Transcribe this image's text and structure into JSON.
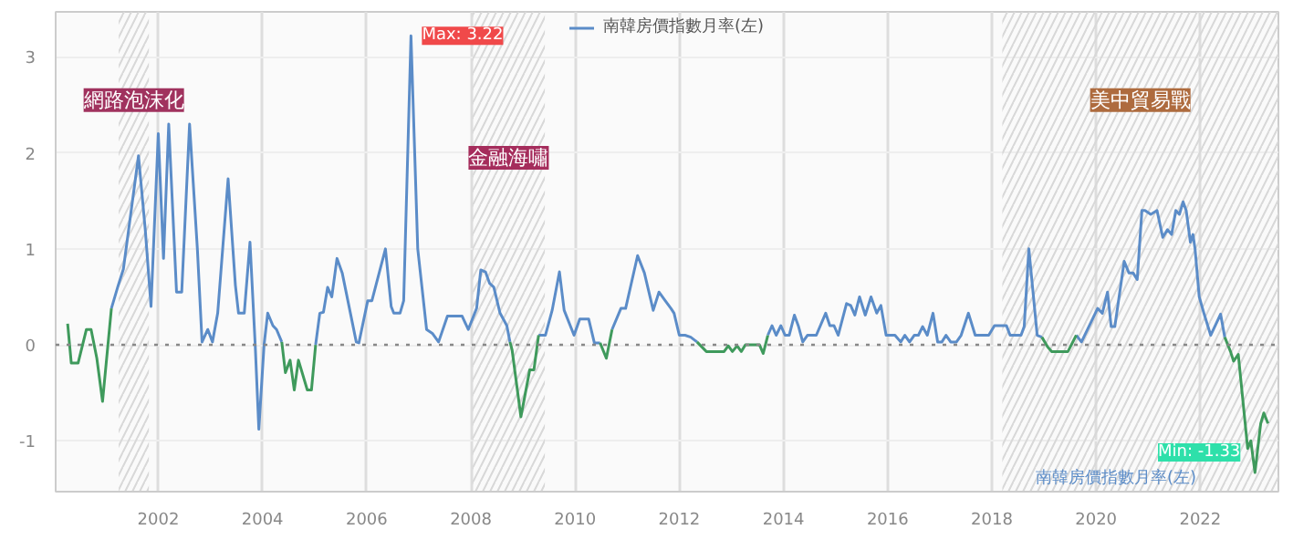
{
  "chart_data": {
    "type": "line",
    "legend": "top",
    "grid": true,
    "line_style": "solid",
    "marker": "none",
    "xlim": [
      2000.03,
      2023.5
    ],
    "xticks": [
      2002,
      2004,
      2006,
      2008,
      2010,
      2012,
      2014,
      2016,
      2018,
      2020,
      2022
    ],
    "ylim": [
      -1.53,
      3.47
    ],
    "yticks": [
      -1,
      0,
      1,
      2,
      3
    ],
    "series": [
      {
        "name": "南韓房價指數月率(左)",
        "color": "#5b8cc8",
        "x": [
          2001.1,
          2001.22,
          2001.33,
          2001.62,
          2001.75,
          2001.86,
          2002.0,
          2002.1,
          2002.2,
          2002.35,
          2002.45,
          2002.6,
          2002.75,
          2002.84,
          2002.95,
          2003.04,
          2003.14,
          2003.34,
          2003.48,
          2003.54,
          2003.65,
          2003.76,
          2003.86,
          2003.93,
          2004.03,
          2004.1,
          2004.2,
          2004.27,
          2004.37,
          2004.44,
          2005.02,
          2005.1,
          2005.17,
          2005.25,
          2005.33,
          2005.43,
          2005.53,
          2005.8,
          2005.85,
          2006.02,
          2006.1,
          2006.36,
          2006.47,
          2006.52,
          2006.64,
          2006.71,
          2006.85,
          2006.98,
          2007.15,
          2007.26,
          2007.38,
          2007.55,
          2007.83,
          2007.95,
          2008.11,
          2008.19,
          2008.28,
          2008.36,
          2008.44,
          2008.56,
          2008.69,
          2008.75,
          2008.79,
          2009.3,
          2009.43,
          2009.56,
          2009.7,
          2009.79,
          2009.98,
          2010.09,
          2010.26,
          2010.37,
          2010.48,
          2010.6,
          2010.71,
          2010.88,
          2010.97,
          2011.2,
          2011.33,
          2011.5,
          2011.61,
          2011.73,
          2011.84,
          2011.9,
          2012.0,
          2012.11,
          2012.22,
          2012.34,
          2012.52,
          2013.7,
          2013.78,
          2013.86,
          2013.95,
          2014.03,
          2014.11,
          2014.21,
          2014.29,
          2014.37,
          2014.46,
          2014.63,
          2014.81,
          2014.89,
          2014.97,
          2015.05,
          2015.21,
          2015.29,
          2015.37,
          2015.46,
          2015.57,
          2015.68,
          2015.79,
          2015.87,
          2015.97,
          2016.14,
          2016.25,
          2016.33,
          2016.42,
          2016.51,
          2016.59,
          2016.67,
          2016.76,
          2016.87,
          2016.96,
          2017.04,
          2017.12,
          2017.21,
          2017.32,
          2017.41,
          2017.55,
          2017.68,
          2017.94,
          2018.05,
          2018.28,
          2018.35,
          2018.56,
          2018.62,
          2018.71,
          2018.87,
          2018.96,
          2019.07,
          2019.62,
          2019.72,
          2020.03,
          2020.12,
          2020.22,
          2020.29,
          2020.36,
          2020.54,
          2020.63,
          2020.71,
          2020.79,
          2020.88,
          2020.94,
          2021.05,
          2021.17,
          2021.28,
          2021.37,
          2021.45,
          2021.53,
          2021.6,
          2021.67,
          2021.73,
          2021.81,
          2021.86,
          2021.9,
          2021.98,
          2022.07,
          2022.2,
          2022.39,
          2022.47
        ],
        "values": [
          0.38,
          0.6,
          0.79,
          1.97,
          1.2,
          0.4,
          2.2,
          0.9,
          2.3,
          0.55,
          0.55,
          2.3,
          1.0,
          0.03,
          0.16,
          0.03,
          0.33,
          1.73,
          0.62,
          0.33,
          0.33,
          1.07,
          0.0,
          -0.88,
          0.0,
          0.33,
          0.2,
          0.16,
          0.03,
          null,
          0.0,
          0.33,
          0.34,
          0.6,
          0.5,
          0.9,
          0.75,
          0.03,
          0.02,
          0.46,
          0.46,
          1.0,
          0.4,
          0.33,
          0.33,
          0.46,
          3.22,
          1.0,
          0.16,
          0.12,
          0.03,
          0.3,
          0.3,
          0.16,
          0.38,
          0.78,
          0.76,
          0.64,
          0.6,
          0.33,
          0.2,
          0.03,
          null,
          0.1,
          0.1,
          0.36,
          0.76,
          0.36,
          0.1,
          0.27,
          0.27,
          0.02,
          0.02,
          null,
          0.16,
          0.38,
          0.38,
          0.93,
          0.75,
          0.36,
          0.55,
          0.46,
          0.38,
          0.33,
          0.1,
          0.1,
          0.08,
          0.03,
          null,
          0.1,
          0.2,
          0.1,
          0.2,
          0.1,
          0.1,
          0.31,
          0.19,
          0.03,
          0.1,
          0.1,
          0.33,
          0.2,
          0.2,
          0.1,
          0.43,
          0.41,
          0.31,
          0.5,
          0.31,
          0.5,
          0.33,
          0.41,
          0.1,
          0.1,
          0.03,
          0.1,
          0.03,
          0.1,
          0.1,
          0.19,
          0.1,
          0.33,
          0.03,
          0.03,
          0.1,
          0.03,
          0.03,
          0.1,
          0.33,
          0.1,
          0.1,
          0.2,
          0.2,
          0.1,
          0.1,
          0.19,
          1.0,
          0.1,
          0.08,
          null,
          0.1,
          0.03,
          0.38,
          0.33,
          0.55,
          0.19,
          0.19,
          0.87,
          0.75,
          0.75,
          0.68,
          1.4,
          1.4,
          1.36,
          1.4,
          1.12,
          1.2,
          1.15,
          1.4,
          1.36,
          1.49,
          1.4,
          1.07,
          1.15,
          1.0,
          0.5,
          0.33,
          0.1,
          0.32,
          0.08
        ]
      },
      {
        "color": "#3f9a5c",
        "x": [
          2000.26,
          2000.33,
          2000.46,
          2000.62,
          2000.71,
          2000.82,
          2000.93,
          2001.1,
          2001.2,
          2004.37,
          2004.44,
          2004.53,
          2004.61,
          2004.69,
          2004.86,
          2004.94,
          2005.02,
          2005.1,
          2008.75,
          2008.79,
          2008.96,
          2009.13,
          2009.21,
          2009.3,
          2009.4,
          2010.48,
          2010.6,
          2010.71,
          2010.8,
          2012.34,
          2012.52,
          2012.86,
          2012.94,
          2013.02,
          2013.11,
          2013.19,
          2013.27,
          2013.54,
          2013.61,
          2013.7,
          2013.8,
          2018.96,
          2019.07,
          2019.15,
          2019.46,
          2019.62,
          2019.7,
          2022.47,
          2022.58,
          2022.64,
          2022.73,
          2022.91,
          2022.97,
          2023.05,
          2023.16,
          2023.22,
          2023.3
        ],
        "values": [
          0.22,
          -0.19,
          -0.19,
          0.16,
          0.16,
          -0.14,
          -0.59,
          0.38,
          null,
          0.03,
          -0.29,
          -0.16,
          -0.47,
          -0.16,
          -0.47,
          -0.47,
          0.0,
          null,
          0.03,
          -0.05,
          -0.75,
          -0.26,
          -0.26,
          0.1,
          null,
          0.02,
          -0.14,
          0.16,
          null,
          0.03,
          -0.07,
          -0.07,
          -0.01,
          -0.07,
          -0.01,
          -0.07,
          0.0,
          0.0,
          -0.09,
          0.1,
          null,
          0.08,
          -0.02,
          -0.07,
          -0.07,
          0.1,
          null,
          0.08,
          -0.07,
          -0.17,
          -0.1,
          -1.08,
          -1.0,
          -1.33,
          -0.82,
          -0.71,
          -0.82
        ]
      }
    ],
    "ref_lines": [
      {
        "axis": "y",
        "value": 0,
        "color": "#888888",
        "line_style": "dotted"
      }
    ],
    "bands": [
      {
        "axis": "x",
        "from": 2001.24,
        "to": 2001.82,
        "label": "網路泡沫化",
        "color": "#a0325e"
      },
      {
        "axis": "x",
        "from": 2008.03,
        "to": 2009.42,
        "label": "金融海嘯",
        "color": "#a52d5c"
      },
      {
        "axis": "x",
        "from": 2018.2,
        "to": 2023.5,
        "label": "美中貿易戰",
        "color": "#ae6b3e"
      }
    ],
    "annotations": [
      {
        "text": "Max: 3.22",
        "x": 2006.85,
        "y": 3.22
      },
      {
        "text": "Min: -1.33",
        "x": 2023.05,
        "y": -1.33
      },
      "南韓房價指數月率(左)"
    ]
  }
}
